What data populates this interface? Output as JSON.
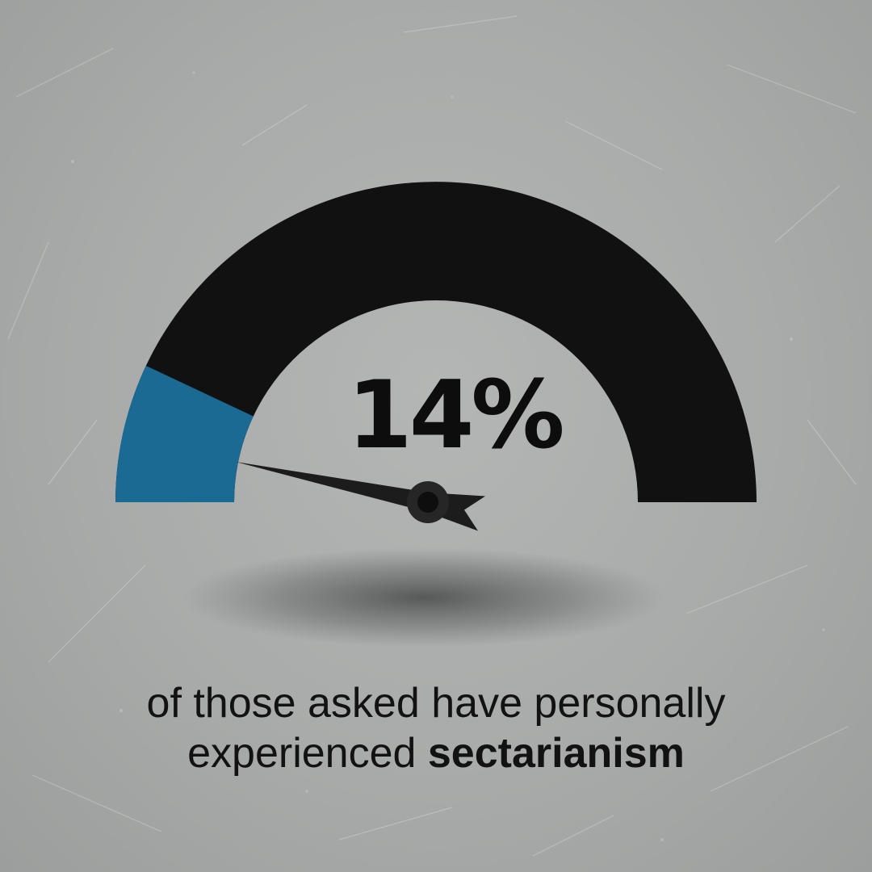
{
  "chart_data": {
    "type": "gauge",
    "value": 14,
    "min": 0,
    "max": 100,
    "value_label": "14%",
    "caption_line1": "of those asked have personally",
    "caption_line2_prefix": "experienced ",
    "caption_line2_bold": "sectarianism"
  },
  "colors": {
    "fill": "#1b6a94",
    "track": "#111111",
    "needle": "#1c1c1c",
    "text": "#121212"
  }
}
